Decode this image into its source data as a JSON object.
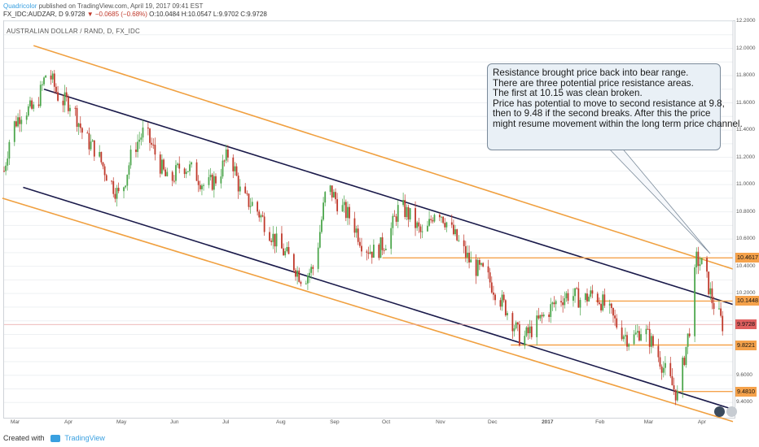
{
  "header": {
    "author": "Quadricolor",
    "published": "published on TradingView.com, April 19, 2017 09:41 EST",
    "symbol_line": "FX_IDC:AUDZAR, D",
    "last_price": "9.9728",
    "change": "▼ −0.0685 (−0.68%)",
    "open": "O:10.0484",
    "high": "H:10.0547",
    "low": "L:9.9702",
    "close": "C:9.9728"
  },
  "chart_title": "AUSTRALIAN DOLLAR / RAND, D, FX_IDC",
  "footer": {
    "created_with": "Created with",
    "brand": "TradingView"
  },
  "annotation": {
    "lines": [
      "Resistance brought price back into bear range.",
      "There are three potential price resistance areas.",
      "The first at 10.15 was clean broken.",
      "Price has potential to move to second resistance at 9.8,",
      "then to 9.48 if the second breaks. After this the price",
      "might resume movement within the long term price channel."
    ]
  },
  "price_tags": [
    {
      "label": "10.4617",
      "value": 10.4617,
      "color": "#f5a24b"
    },
    {
      "label": "10.1448",
      "value": 10.1448,
      "color": "#f5a24b"
    },
    {
      "label": "9.9728",
      "value": 9.9728,
      "color": "#e06060"
    },
    {
      "label": "9.8221",
      "value": 9.8221,
      "color": "#f5a24b"
    },
    {
      "label": "9.4810",
      "value": 9.481,
      "color": "#f5a24b"
    }
  ],
  "colors": {
    "up": "#4ca64c",
    "down": "#c0392b",
    "outer_channel": "#f0a040",
    "inner_channel": "#1a1a4a",
    "resistance": "#f5a24b",
    "last_price_line": "#e8a0a0"
  },
  "chart_data": {
    "type": "candlestick",
    "title": "AUSTRALIAN DOLLAR / RAND, D, FX_IDC",
    "x_axis": {
      "ticks": [
        "Mar",
        "Apr",
        "May",
        "Jun",
        "Jul",
        "Aug",
        "Sep",
        "Oct",
        "Nov",
        "Dec",
        "2017",
        "Feb",
        "Mar",
        "Apr"
      ],
      "range": [
        "2016-03-01",
        "2017-04-25"
      ]
    },
    "y_axis": {
      "range": [
        9.3,
        12.2
      ],
      "ticks": [
        "12.2000",
        "12.0000",
        "11.8000",
        "11.6000",
        "11.4000",
        "11.2000",
        "11.0000",
        "10.8000",
        "10.6000",
        "10.4000",
        "10.2000",
        "9.6000",
        "9.4000"
      ],
      "side": "right"
    },
    "price_path": [
      [
        "2016-03-01",
        11.1
      ],
      [
        "2016-03-05",
        11.4
      ],
      [
        "2016-03-12",
        11.55
      ],
      [
        "2016-03-19",
        11.55
      ],
      [
        "2016-03-26",
        11.85
      ],
      [
        "2016-04-02",
        11.62
      ],
      [
        "2016-04-09",
        11.6
      ],
      [
        "2016-04-16",
        11.35
      ],
      [
        "2016-04-23",
        11.25
      ],
      [
        "2016-04-30",
        11.05
      ],
      [
        "2016-05-07",
        10.9
      ],
      [
        "2016-05-14",
        11.25
      ],
      [
        "2016-05-21",
        11.4
      ],
      [
        "2016-05-28",
        11.2
      ],
      [
        "2016-06-04",
        11.0
      ],
      [
        "2016-06-11",
        11.15
      ],
      [
        "2016-06-18",
        11.1
      ],
      [
        "2016-06-25",
        10.98
      ],
      [
        "2016-07-02",
        11.05
      ],
      [
        "2016-07-09",
        11.25
      ],
      [
        "2016-07-16",
        10.9
      ],
      [
        "2016-07-23",
        10.85
      ],
      [
        "2016-07-30",
        10.7
      ],
      [
        "2016-08-06",
        10.55
      ],
      [
        "2016-08-13",
        10.45
      ],
      [
        "2016-08-20",
        10.3
      ],
      [
        "2016-08-27",
        10.4
      ],
      [
        "2016-09-03",
        11.0
      ],
      [
        "2016-09-10",
        10.85
      ],
      [
        "2016-09-17",
        10.75
      ],
      [
        "2016-09-24",
        10.55
      ],
      [
        "2016-10-01",
        10.5
      ],
      [
        "2016-10-08",
        10.6
      ],
      [
        "2016-10-15",
        10.85
      ],
      [
        "2016-10-22",
        10.75
      ],
      [
        "2016-10-29",
        10.6
      ],
      [
        "2016-11-05",
        10.85
      ],
      [
        "2016-11-12",
        10.7
      ],
      [
        "2016-11-19",
        10.55
      ],
      [
        "2016-11-26",
        10.4
      ],
      [
        "2016-12-03",
        10.35
      ],
      [
        "2016-12-10",
        10.2
      ],
      [
        "2016-12-17",
        10.05
      ],
      [
        "2016-12-24",
        9.85
      ],
      [
        "2016-12-31",
        9.95
      ],
      [
        "2017-01-07",
        10.05
      ],
      [
        "2017-01-14",
        10.15
      ],
      [
        "2017-01-21",
        10.2
      ],
      [
        "2017-01-28",
        10.15
      ],
      [
        "2017-02-04",
        10.2
      ],
      [
        "2017-02-11",
        10.1
      ],
      [
        "2017-02-18",
        9.95
      ],
      [
        "2017-02-25",
        9.85
      ],
      [
        "2017-03-04",
        9.95
      ],
      [
        "2017-03-11",
        9.8
      ],
      [
        "2017-03-18",
        9.6
      ],
      [
        "2017-03-24",
        9.45
      ],
      [
        "2017-03-31",
        9.95
      ],
      [
        "2017-04-04",
        10.45
      ],
      [
        "2017-04-08",
        10.4
      ],
      [
        "2017-04-13",
        10.15
      ],
      [
        "2017-04-19",
        9.9728
      ]
    ],
    "trendlines": {
      "outer_upper": {
        "from": [
          "2016-03-18",
          12.02
        ],
        "to": [
          "2017-04-25",
          10.38
        ]
      },
      "outer_lower": {
        "from": [
          "2016-02-29",
          10.9
        ],
        "to": [
          "2017-04-25",
          9.26
        ]
      },
      "inner_upper": {
        "from": [
          "2016-03-24",
          11.7
        ],
        "to": [
          "2017-04-25",
          10.12
        ]
      },
      "inner_lower": {
        "from": [
          "2016-03-12",
          10.98
        ],
        "to": [
          "2017-04-25",
          9.35
        ]
      }
    },
    "resistance_lines": [
      {
        "value": 10.4617,
        "from": "2016-10-05"
      },
      {
        "value": 10.1448,
        "from": "2017-02-05"
      },
      {
        "value": 9.8221,
        "from": "2016-12-18"
      },
      {
        "value": 9.481,
        "from": "2017-03-24"
      }
    ],
    "last_price": 9.9728,
    "grid": true,
    "legend": "none"
  }
}
